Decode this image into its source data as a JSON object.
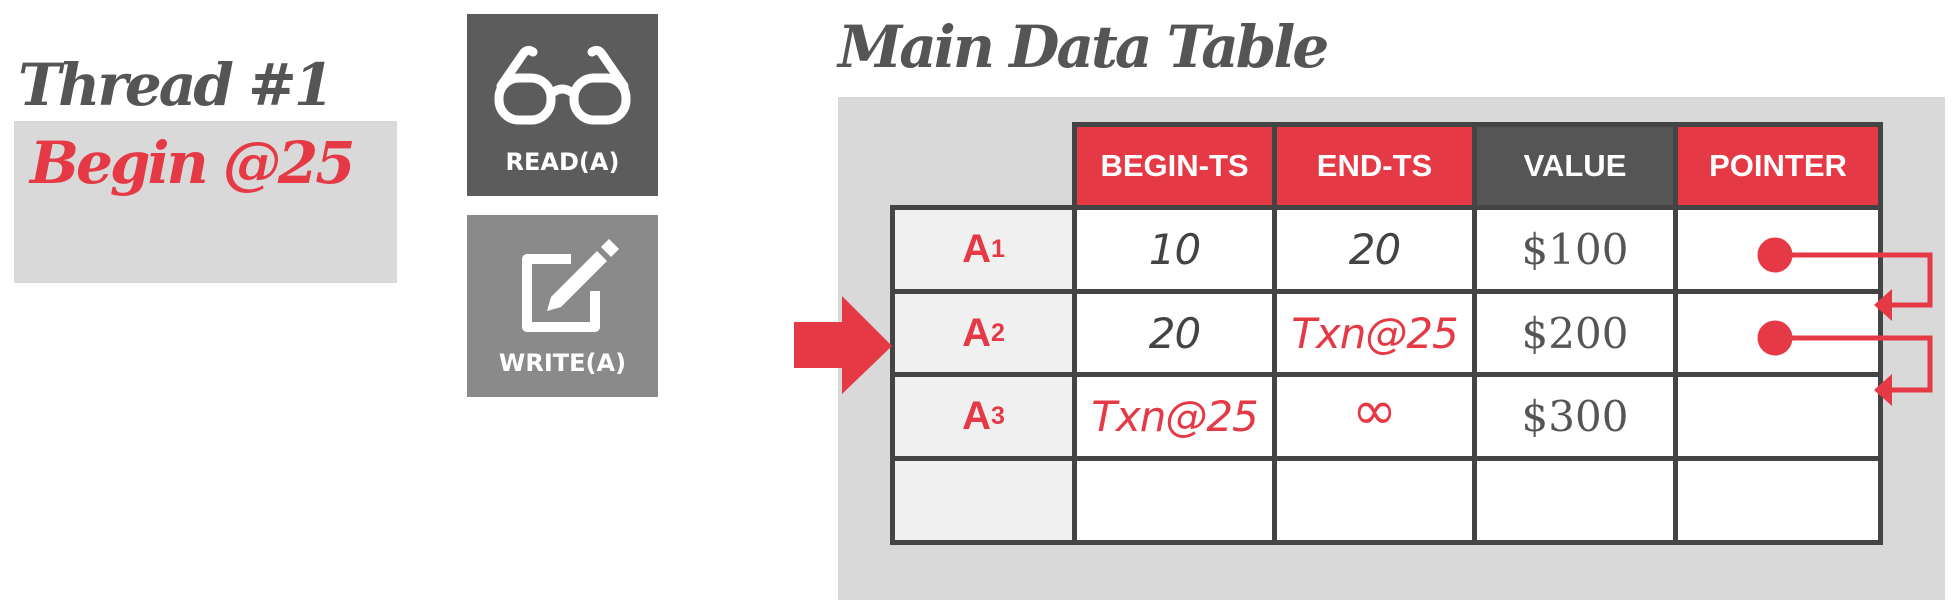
{
  "thread": {
    "title": "Thread #1",
    "begin": "Begin @25"
  },
  "operations": [
    {
      "label": "READ(A)",
      "icon": "glasses-icon"
    },
    {
      "label": "WRITE(A)",
      "icon": "edit-icon"
    }
  ],
  "table": {
    "title": "Main Data Table",
    "headers": [
      "BEGIN-TS",
      "END-TS",
      "VALUE",
      "POINTER"
    ],
    "rows": [
      {
        "name": "A",
        "sub": "1",
        "begin_ts": "10",
        "end_ts": "20",
        "value": "$100"
      },
      {
        "name": "A",
        "sub": "2",
        "begin_ts": "20",
        "end_ts": "Txn@25",
        "value": "$200"
      },
      {
        "name": "A",
        "sub": "3",
        "begin_ts": "Txn@25",
        "end_ts": "∞",
        "value": "$300"
      }
    ]
  },
  "colors": {
    "accent": "#e63946",
    "dark": "#555555",
    "panel": "#d9d9d9"
  }
}
